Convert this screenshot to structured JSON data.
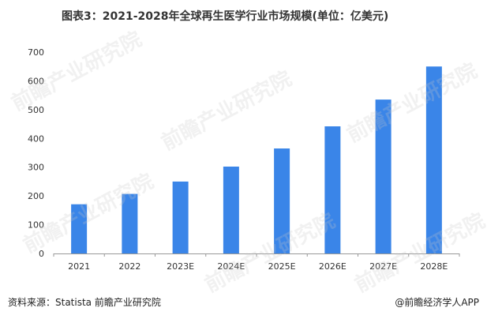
{
  "title": "图表3：2021-2028年全球再生医学行业市场规模(单位：亿美元)",
  "footer": {
    "source": "资料来源：Statista 前瞻产业研究院",
    "credit": "@前瞻经济学人APP"
  },
  "watermark": "前瞻产业研究院",
  "colors": {
    "bar": "#3a85e8",
    "axis": "#999999",
    "text": "#333333"
  },
  "chart_data": {
    "type": "bar",
    "categories": [
      "2021",
      "2022",
      "2023E",
      "2024E",
      "2025E",
      "2026E",
      "2027E",
      "2028E"
    ],
    "values": [
      171,
      207,
      250,
      302,
      365,
      442,
      535,
      650
    ],
    "ylim": [
      0,
      700
    ],
    "yticks": [
      0,
      100,
      200,
      300,
      400,
      500,
      600,
      700
    ],
    "grid": false
  }
}
